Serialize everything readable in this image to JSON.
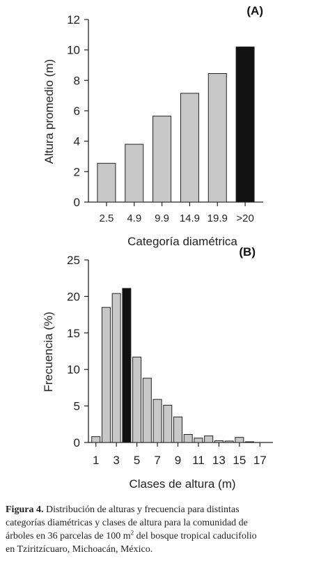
{
  "chart_data": [
    {
      "type": "bar",
      "panel_label": "(A)",
      "categories": [
        "2.5",
        "4.9",
        "9.9",
        "14.9",
        "19.9",
        ">20"
      ],
      "values": [
        2.55,
        3.8,
        5.65,
        7.15,
        8.45,
        10.2
      ],
      "xlabel": "Categoría diamétrica",
      "ylabel": "Altura promedio (m)",
      "ylim": [
        0,
        12
      ],
      "yticks": [
        "0",
        "2",
        "4",
        "6",
        "8",
        "10",
        "12"
      ],
      "highlight_index": 5,
      "bar_color": "#c8c8c8",
      "highlight_color": "#111111"
    },
    {
      "type": "bar",
      "panel_label": "(B)",
      "x": [
        1,
        2,
        3,
        4,
        5,
        6,
        7,
        8,
        9,
        10,
        11,
        12,
        13,
        14,
        15,
        16
      ],
      "values": [
        0.8,
        18.5,
        20.4,
        21.1,
        11.7,
        8.8,
        5.9,
        5.1,
        3.5,
        1.1,
        0.6,
        0.9,
        0.25,
        0.2,
        0.7,
        0.1
      ],
      "xticks": [
        "1",
        "3",
        "5",
        "7",
        "9",
        "11",
        "13",
        "15",
        "17"
      ],
      "xlabel": "Clases de altura (m)",
      "ylabel": "Frecuencia (%)",
      "ylim": [
        0,
        25
      ],
      "yticks": [
        "0",
        "5",
        "10",
        "15",
        "20",
        "25"
      ],
      "highlight_index": 3,
      "bar_color": "#c8c8c8",
      "highlight_color": "#111111"
    }
  ],
  "caption": {
    "label": "Figura 4.",
    "line1": " Distribución de alturas y frecuencia para distintas",
    "line2": "categorías diamétricas y clases de altura para la comunidad de",
    "line3a": "árboles en 36 parcelas de 100 m",
    "sup": "2",
    "line3b": " del bosque tropical caducifolio",
    "line4": "en Tziritzícuaro, Michoacán, México."
  }
}
